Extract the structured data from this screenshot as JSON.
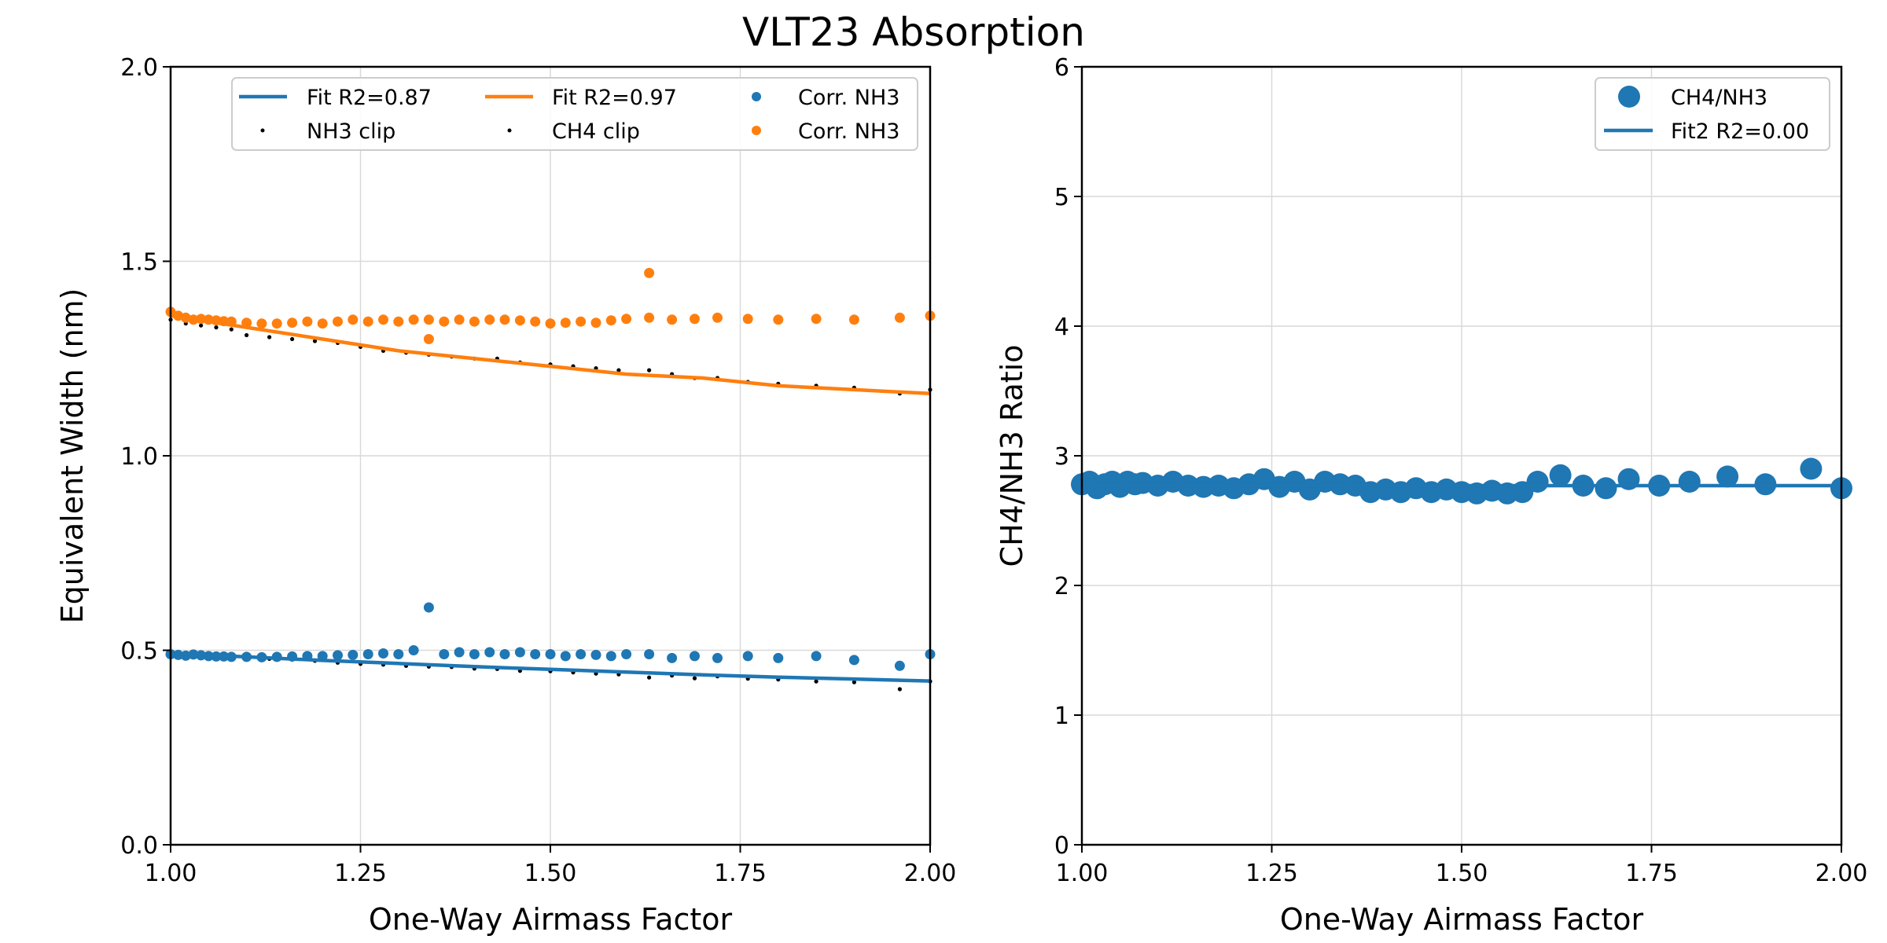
{
  "figure": {
    "title": "VLT23 Absorption"
  },
  "colors": {
    "blue": "#1f77b4",
    "orange": "#ff7f0e",
    "black": "#000000",
    "grid": "#d9d9d9"
  },
  "chart_data": [
    {
      "type": "scatter",
      "xlabel": "One-Way Airmass Factor",
      "ylabel": "Equivalent Width (nm)",
      "xlim": [
        1.0,
        2.0
      ],
      "ylim": [
        0.0,
        2.0
      ],
      "xticks": [
        "1.00",
        "1.25",
        "1.50",
        "1.75",
        "2.00"
      ],
      "yticks": [
        "0.0",
        "0.5",
        "1.0",
        "1.5",
        "2.0"
      ],
      "grid": true,
      "legend_position": "top-right",
      "series": [
        {
          "name": "Fit R2=0.87",
          "kind": "line",
          "color": "#1f77b4",
          "x": [
            1.0,
            1.1,
            1.2,
            1.3,
            1.4,
            1.5,
            1.6,
            1.7,
            1.8,
            1.9,
            2.0
          ],
          "y": [
            0.492,
            0.483,
            0.474,
            0.466,
            0.458,
            0.451,
            0.444,
            0.437,
            0.431,
            0.426,
            0.421
          ]
        },
        {
          "name": "Fit R2=0.97",
          "kind": "line",
          "color": "#ff7f0e",
          "x": [
            1.0,
            1.1,
            1.2,
            1.3,
            1.4,
            1.5,
            1.6,
            1.7,
            1.8,
            1.9,
            2.0
          ],
          "y": [
            1.36,
            1.33,
            1.3,
            1.27,
            1.25,
            1.23,
            1.21,
            1.2,
            1.18,
            1.17,
            1.16
          ]
        },
        {
          "name": "NH3 clip",
          "kind": "dot",
          "color": "#000000",
          "x": [
            1.0,
            1.02,
            1.04,
            1.06,
            1.08,
            1.1,
            1.13,
            1.16,
            1.19,
            1.22,
            1.25,
            1.28,
            1.31,
            1.34,
            1.37,
            1.4,
            1.43,
            1.46,
            1.5,
            1.53,
            1.56,
            1.59,
            1.63,
            1.66,
            1.69,
            1.72,
            1.76,
            1.8,
            1.85,
            1.9,
            1.96,
            2.0
          ],
          "y": [
            0.49,
            0.489,
            0.486,
            0.484,
            0.482,
            0.48,
            0.478,
            0.476,
            0.473,
            0.468,
            0.465,
            0.463,
            0.46,
            0.458,
            0.457,
            0.453,
            0.452,
            0.447,
            0.446,
            0.443,
            0.44,
            0.438,
            0.43,
            0.435,
            0.428,
            0.433,
            0.427,
            0.425,
            0.42,
            0.418,
            0.4,
            0.42
          ]
        },
        {
          "name": "CH4 clip",
          "kind": "dot",
          "color": "#000000",
          "x": [
            1.0,
            1.02,
            1.04,
            1.06,
            1.08,
            1.1,
            1.13,
            1.16,
            1.19,
            1.22,
            1.25,
            1.28,
            1.31,
            1.34,
            1.37,
            1.4,
            1.43,
            1.46,
            1.5,
            1.53,
            1.56,
            1.59,
            1.63,
            1.66,
            1.69,
            1.72,
            1.76,
            1.8,
            1.85,
            1.9,
            1.96,
            2.0
          ],
          "y": [
            1.35,
            1.34,
            1.335,
            1.33,
            1.325,
            1.31,
            1.305,
            1.3,
            1.295,
            1.29,
            1.28,
            1.27,
            1.265,
            1.26,
            1.255,
            1.25,
            1.25,
            1.24,
            1.235,
            1.23,
            1.225,
            1.22,
            1.22,
            1.21,
            1.2,
            1.2,
            1.19,
            1.185,
            1.18,
            1.175,
            1.16,
            1.17
          ]
        },
        {
          "name": "Corr. NH3",
          "kind": "point",
          "color": "#1f77b4",
          "x": [
            1.0,
            1.01,
            1.02,
            1.03,
            1.04,
            1.05,
            1.06,
            1.07,
            1.08,
            1.1,
            1.12,
            1.14,
            1.16,
            1.18,
            1.2,
            1.22,
            1.24,
            1.26,
            1.28,
            1.3,
            1.32,
            1.34,
            1.36,
            1.38,
            1.4,
            1.42,
            1.44,
            1.46,
            1.48,
            1.5,
            1.52,
            1.54,
            1.56,
            1.58,
            1.6,
            1.63,
            1.66,
            1.69,
            1.72,
            1.76,
            1.8,
            1.85,
            1.9,
            1.96,
            2.0
          ],
          "y": [
            0.49,
            0.488,
            0.486,
            0.489,
            0.487,
            0.485,
            0.484,
            0.484,
            0.483,
            0.483,
            0.482,
            0.483,
            0.484,
            0.485,
            0.485,
            0.487,
            0.488,
            0.49,
            0.492,
            0.49,
            0.5,
            0.61,
            0.49,
            0.495,
            0.49,
            0.495,
            0.49,
            0.495,
            0.49,
            0.49,
            0.485,
            0.49,
            0.488,
            0.485,
            0.49,
            0.49,
            0.48,
            0.485,
            0.48,
            0.485,
            0.48,
            0.485,
            0.475,
            0.46,
            0.49
          ]
        },
        {
          "name": "Corr. NH3",
          "kind": "point",
          "color": "#ff7f0e",
          "x": [
            1.0,
            1.01,
            1.02,
            1.03,
            1.04,
            1.05,
            1.06,
            1.07,
            1.08,
            1.1,
            1.12,
            1.14,
            1.16,
            1.18,
            1.2,
            1.22,
            1.24,
            1.26,
            1.28,
            1.3,
            1.32,
            1.34,
            1.34,
            1.36,
            1.38,
            1.4,
            1.42,
            1.44,
            1.46,
            1.48,
            1.5,
            1.52,
            1.54,
            1.56,
            1.58,
            1.6,
            1.63,
            1.63,
            1.66,
            1.69,
            1.72,
            1.76,
            1.8,
            1.85,
            1.9,
            1.96,
            2.0
          ],
          "y": [
            1.37,
            1.36,
            1.355,
            1.35,
            1.352,
            1.35,
            1.348,
            1.346,
            1.345,
            1.342,
            1.34,
            1.34,
            1.342,
            1.345,
            1.34,
            1.345,
            1.35,
            1.345,
            1.35,
            1.345,
            1.35,
            1.35,
            1.3,
            1.345,
            1.35,
            1.345,
            1.35,
            1.35,
            1.348,
            1.345,
            1.34,
            1.342,
            1.345,
            1.342,
            1.348,
            1.352,
            1.355,
            1.47,
            1.35,
            1.352,
            1.355,
            1.352,
            1.35,
            1.352,
            1.35,
            1.355,
            1.36
          ]
        }
      ]
    },
    {
      "type": "scatter",
      "xlabel": "One-Way Airmass Factor",
      "ylabel": "CH4/NH3 Ratio",
      "xlim": [
        1.0,
        2.0
      ],
      "ylim": [
        0,
        6
      ],
      "xticks": [
        "1.00",
        "1.25",
        "1.50",
        "1.75",
        "2.00"
      ],
      "yticks": [
        "0",
        "1",
        "2",
        "3",
        "4",
        "5",
        "6"
      ],
      "grid": true,
      "legend_position": "top-right",
      "series": [
        {
          "name": "CH4/NH3",
          "kind": "bigpoint",
          "color": "#1f77b4",
          "x": [
            1.0,
            1.01,
            1.02,
            1.03,
            1.04,
            1.05,
            1.06,
            1.07,
            1.08,
            1.1,
            1.12,
            1.14,
            1.16,
            1.18,
            1.2,
            1.22,
            1.24,
            1.26,
            1.28,
            1.3,
            1.32,
            1.34,
            1.36,
            1.38,
            1.4,
            1.42,
            1.44,
            1.46,
            1.48,
            1.5,
            1.52,
            1.54,
            1.56,
            1.58,
            1.6,
            1.63,
            1.66,
            1.69,
            1.72,
            1.76,
            1.8,
            1.85,
            1.9,
            1.96,
            2.0
          ],
          "y": [
            2.78,
            2.8,
            2.75,
            2.78,
            2.8,
            2.76,
            2.8,
            2.78,
            2.79,
            2.77,
            2.8,
            2.77,
            2.76,
            2.77,
            2.75,
            2.78,
            2.82,
            2.76,
            2.8,
            2.74,
            2.8,
            2.78,
            2.77,
            2.72,
            2.74,
            2.72,
            2.75,
            2.72,
            2.74,
            2.72,
            2.71,
            2.73,
            2.71,
            2.72,
            2.8,
            2.85,
            2.77,
            2.75,
            2.82,
            2.77,
            2.8,
            2.84,
            2.78,
            2.9,
            2.75
          ]
        },
        {
          "name": "Fit2 R2=0.00",
          "kind": "line",
          "color": "#1f77b4",
          "x": [
            1.0,
            2.0
          ],
          "y": [
            2.77,
            2.77
          ]
        }
      ]
    }
  ]
}
